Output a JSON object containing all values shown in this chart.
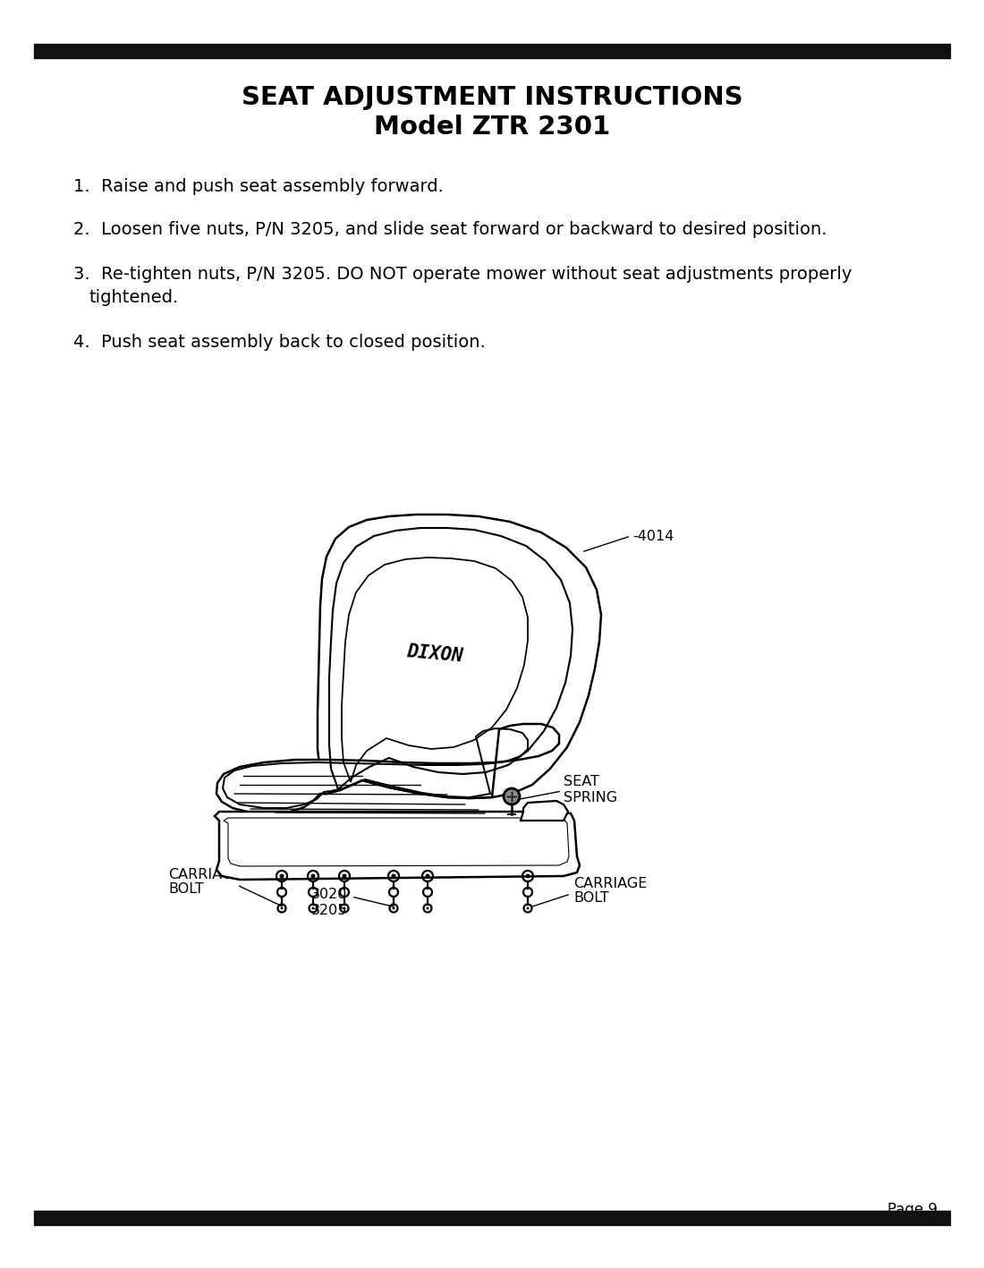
{
  "title_line1": "SEAT ADJUSTMENT INSTRUCTIONS",
  "title_line2": "Model ZTR 2301",
  "instr1": "1.  Raise and push seat assembly forward.",
  "instr2": "2.  Loosen five nuts, P/N 3205, and slide seat forward or backward to desired position.",
  "instr3a": "3.  Re-tighten nuts, P/N 3205. DO NOT operate mower without seat adjustments properly",
  "instr3b": "     tightened.",
  "instr4": "4.  Push seat assembly back to closed position.",
  "page_label": "Page 9",
  "label_4014": "-4014",
  "label_carriage_bolt_l1": "CARRIAGE",
  "label_carriage_bolt_l2": "BOLT",
  "label_3020": "3020",
  "label_3205": "3205",
  "label_seat_spring1": "SEAT",
  "label_seat_spring2": "SPRING",
  "label_carriage_bolt2_l1": "CARRIAGE",
  "label_carriage_bolt2_l2": "BOLT",
  "label_dixon": "DIXON",
  "bg_color": "#ffffff",
  "fg_color": "#000000",
  "bar_color": "#111111"
}
